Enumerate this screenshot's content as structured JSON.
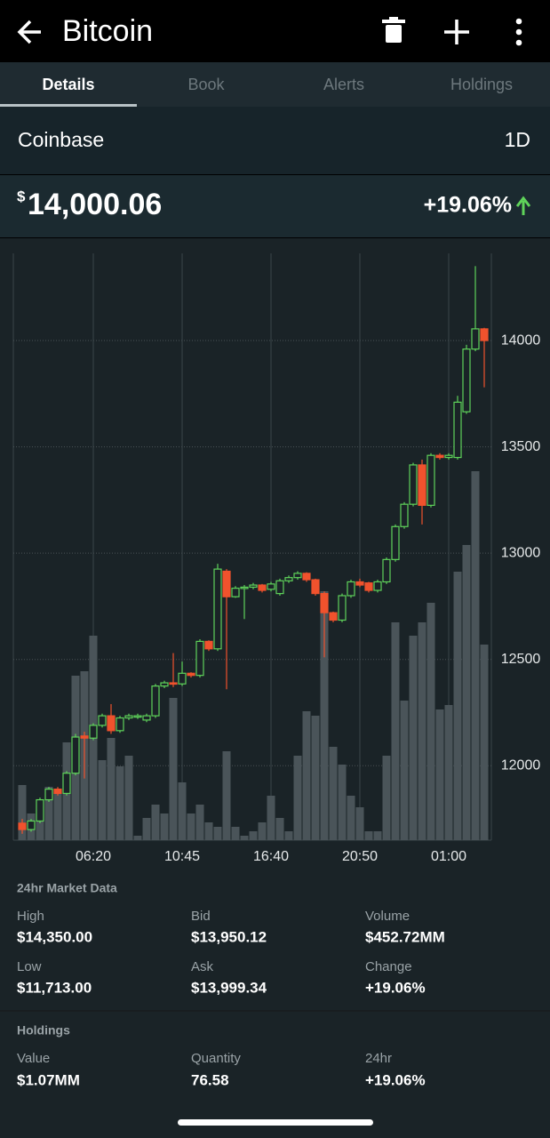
{
  "header": {
    "title": "Bitcoin"
  },
  "tabs": [
    "Details",
    "Book",
    "Alerts",
    "Holdings"
  ],
  "exchange": "Coinbase",
  "period": "1D",
  "price": {
    "currency": "$",
    "value": "14,000.06",
    "change": "+19.06%"
  },
  "chart_data": {
    "type": "candlestick",
    "categories": [
      null,
      null,
      null,
      null,
      null,
      null,
      null,
      null,
      null,
      "06:20",
      null,
      null,
      null,
      null,
      null,
      null,
      null,
      null,
      null,
      "10:45",
      null,
      null,
      null,
      null,
      null,
      null,
      null,
      null,
      null,
      "16:40",
      null,
      null,
      null,
      null,
      null,
      null,
      null,
      null,
      null,
      "20:50",
      null,
      null,
      null,
      null,
      null,
      null,
      null,
      null,
      null,
      "01:00",
      null,
      null,
      null
    ],
    "open": [
      11730,
      11700,
      11740,
      11840,
      11890,
      11870,
      11965,
      12140,
      12130,
      12190,
      12235,
      12165,
      12225,
      12230,
      12215,
      12235,
      12375,
      12390,
      12385,
      12435,
      12425,
      12585,
      12550,
      12915,
      12795,
      12835,
      12840,
      12850,
      12830,
      12810,
      12870,
      12885,
      12905,
      12875,
      12810,
      12720,
      12685,
      12800,
      12865,
      12860,
      12825,
      12865,
      12970,
      13125,
      13230,
      13415,
      13225,
      13460,
      13450,
      13450,
      13665,
      13960,
      14055
    ],
    "high": [
      11750,
      11750,
      11850,
      11900,
      11900,
      11975,
      12150,
      12160,
      12200,
      12245,
      12290,
      12235,
      12245,
      12245,
      12245,
      12385,
      12400,
      12530,
      12490,
      12440,
      12595,
      12590,
      12950,
      12925,
      12845,
      12850,
      12860,
      12855,
      12865,
      12880,
      12895,
      12915,
      12910,
      12880,
      12820,
      12725,
      12810,
      12875,
      12880,
      12865,
      12875,
      12980,
      13135,
      13240,
      13425,
      13440,
      13470,
      13470,
      13470,
      13740,
      13980,
      14350,
      14060
    ],
    "low": [
      11680,
      11690,
      11730,
      11830,
      11860,
      11860,
      11955,
      11940,
      12120,
      12180,
      12150,
      12155,
      12215,
      12220,
      12205,
      12225,
      12365,
      12370,
      12375,
      12415,
      12415,
      12540,
      12540,
      12360,
      12790,
      12690,
      12830,
      12815,
      12820,
      12800,
      12860,
      12875,
      12865,
      12800,
      12510,
      12675,
      12675,
      12790,
      12840,
      12815,
      12815,
      12855,
      12960,
      13115,
      13220,
      13135,
      13215,
      13440,
      13440,
      13440,
      13655,
      13950,
      13780
    ],
    "close": [
      11700,
      11740,
      11840,
      11890,
      11870,
      11965,
      12135,
      12130,
      12190,
      12235,
      12165,
      12225,
      12235,
      12235,
      12235,
      12375,
      12390,
      12385,
      12435,
      12425,
      12585,
      12550,
      12925,
      12795,
      12835,
      12840,
      12850,
      12825,
      12855,
      12870,
      12885,
      12905,
      12875,
      12810,
      12720,
      12685,
      12800,
      12865,
      12850,
      12825,
      12865,
      12970,
      13125,
      13230,
      13415,
      13225,
      13460,
      13450,
      13460,
      13710,
      13960,
      14055,
      14000
    ],
    "volume": [
      62,
      30,
      40,
      60,
      55,
      110,
      185,
      190,
      230,
      90,
      115,
      83,
      95,
      5,
      25,
      40,
      30,
      160,
      65,
      30,
      40,
      20,
      15,
      100,
      15,
      5,
      10,
      20,
      50,
      25,
      10,
      95,
      145,
      140,
      280,
      105,
      85,
      50,
      37,
      10,
      10,
      95,
      245,
      157,
      230,
      245,
      267,
      147,
      152,
      302,
      332,
      415,
      220
    ],
    "up_color": "#5fd35a",
    "down_color": "#f0522d",
    "volume_color": "#4a5459",
    "ylim": [
      11650,
      14410
    ],
    "yticks": [
      12000,
      12500,
      13000,
      13500,
      14000
    ],
    "grid": true
  },
  "market": {
    "title": "24hr Market Data",
    "items": [
      {
        "label": "High",
        "value": "$14,350.00"
      },
      {
        "label": "Bid",
        "value": "$13,950.12"
      },
      {
        "label": "Volume",
        "value": "$452.72MM"
      },
      {
        "label": "Low",
        "value": "$11,713.00"
      },
      {
        "label": "Ask",
        "value": "$13,999.34"
      },
      {
        "label": "Change",
        "value": "+19.06%"
      }
    ]
  },
  "holdings": {
    "title": "Holdings",
    "items": [
      {
        "label": "Value",
        "value": "$1.07MM"
      },
      {
        "label": "Quantity",
        "value": "76.58"
      },
      {
        "label": "24hr",
        "value": "+19.06%"
      }
    ]
  }
}
